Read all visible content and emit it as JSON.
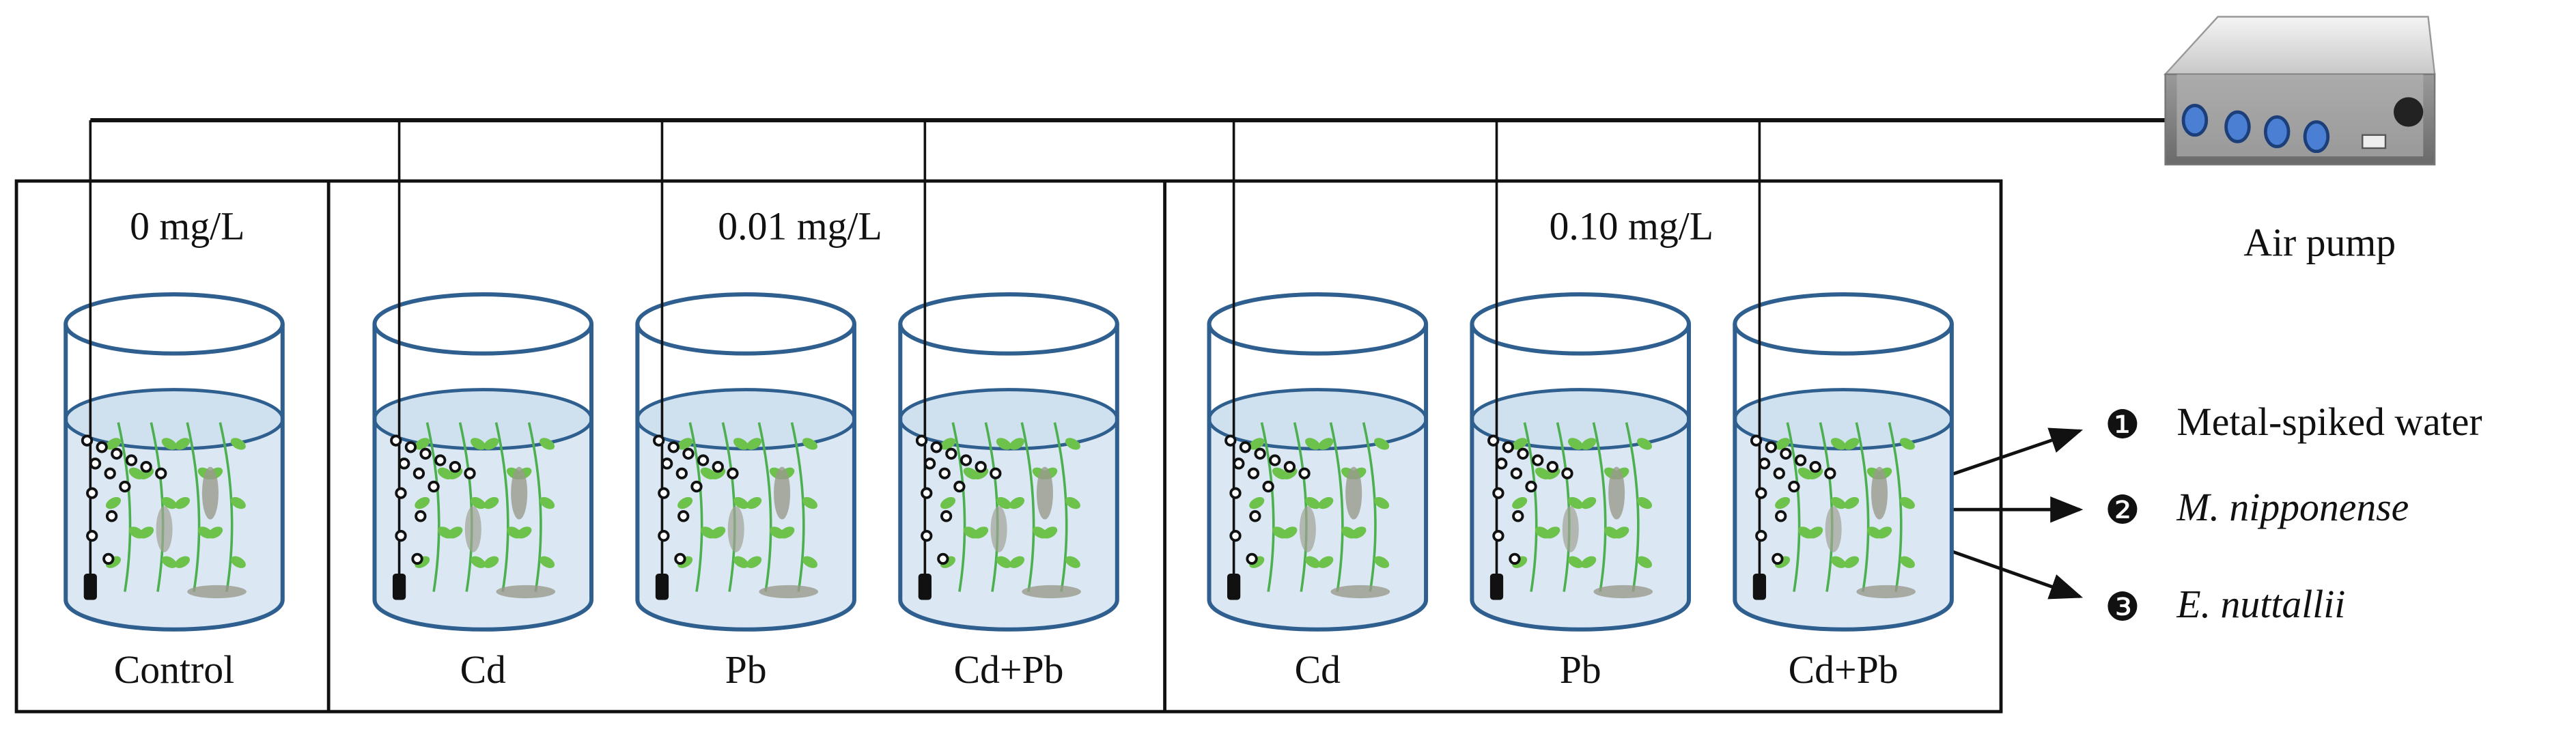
{
  "groups": [
    {
      "label": "0 mg/L"
    },
    {
      "label": "0.01 mg/L"
    },
    {
      "label": "0.10 mg/L"
    }
  ],
  "beakers": [
    {
      "label": "Control"
    },
    {
      "label": "Cd"
    },
    {
      "label": "Pb"
    },
    {
      "label": "Cd+Pb"
    },
    {
      "label": "Cd"
    },
    {
      "label": "Pb"
    },
    {
      "label": "Cd+Pb"
    }
  ],
  "pump": {
    "label": "Air pump"
  },
  "legend": [
    {
      "number": "❶",
      "label": "Metal-spiked water"
    },
    {
      "number": "❷",
      "label": "M. nipponense"
    },
    {
      "number": "❸",
      "label": "E. nuttallii"
    }
  ]
}
